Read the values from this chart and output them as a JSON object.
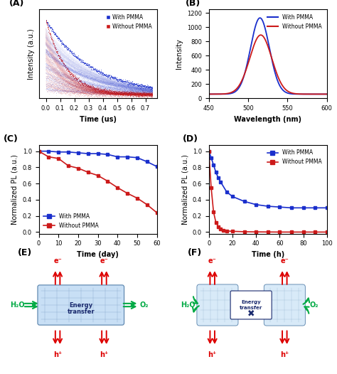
{
  "panel_A": {
    "label": "(A)",
    "xlabel": "Time (us)",
    "ylabel": "Intensity (a.u.)",
    "xlim": [
      -0.05,
      0.78
    ],
    "xticks": [
      0.0,
      0.1,
      0.2,
      0.3,
      0.4,
      0.5,
      0.6,
      0.7
    ],
    "legend": [
      "With PMMA",
      "Without PMMA"
    ],
    "blue_color": "#1a2fcc",
    "red_color": "#cc1a1a",
    "tau_blue": 0.32,
    "tau_red": 0.14
  },
  "panel_B": {
    "label": "(B)",
    "xlabel": "Wavelength (nm)",
    "ylabel": "Intensity",
    "xlim": [
      450,
      600
    ],
    "ylim": [
      0,
      1250
    ],
    "yticks": [
      0,
      200,
      400,
      600,
      800,
      1000,
      1200
    ],
    "xticks": [
      450,
      500,
      550,
      600
    ],
    "legend": [
      "With PMMA",
      "Without PMMA"
    ],
    "blue_color": "#1a2fcc",
    "red_color": "#cc1a1a",
    "mu_blue": 515,
    "sigma_blue": 12,
    "amp_blue": 1070,
    "base_blue": 60,
    "mu_red": 516,
    "sigma_red": 14,
    "amp_red": 830,
    "base_red": 60
  },
  "panel_C": {
    "label": "(C)",
    "xlabel": "Time (day)",
    "ylabel": "Normalized PL (a.u.)",
    "xlim": [
      0,
      60
    ],
    "ylim": [
      -0.02,
      1.08
    ],
    "yticks": [
      0.0,
      0.2,
      0.4,
      0.6,
      0.8,
      1.0
    ],
    "xticks": [
      0,
      10,
      20,
      30,
      40,
      50,
      60
    ],
    "legend": [
      "With PMMA",
      "Without PMMA"
    ],
    "blue_color": "#1a2fcc",
    "red_color": "#cc1a1a",
    "blue_x": [
      0,
      5,
      10,
      15,
      20,
      25,
      30,
      35,
      40,
      45,
      50,
      55,
      60
    ],
    "blue_y": [
      1.0,
      1.0,
      0.99,
      0.99,
      0.98,
      0.97,
      0.97,
      0.96,
      0.93,
      0.93,
      0.92,
      0.87,
      0.81
    ],
    "red_x": [
      0,
      5,
      10,
      15,
      20,
      25,
      30,
      35,
      40,
      45,
      50,
      55,
      60
    ],
    "red_y": [
      1.0,
      0.93,
      0.91,
      0.82,
      0.79,
      0.74,
      0.7,
      0.63,
      0.55,
      0.48,
      0.42,
      0.34,
      0.24
    ]
  },
  "panel_D": {
    "label": "(D)",
    "xlabel": "Time (h)",
    "ylabel": "Normalized PL (a.u.)",
    "xlim": [
      0,
      100
    ],
    "ylim": [
      -0.02,
      1.08
    ],
    "yticks": [
      0.0,
      0.2,
      0.4,
      0.6,
      0.8,
      1.0
    ],
    "xticks": [
      0,
      20,
      40,
      60,
      80,
      100
    ],
    "legend": [
      "With PMMA",
      "Without PMMA"
    ],
    "blue_color": "#1a2fcc",
    "red_color": "#cc1a1a",
    "blue_x": [
      0,
      2,
      4,
      6,
      8,
      10,
      15,
      20,
      30,
      40,
      50,
      60,
      70,
      80,
      90,
      100
    ],
    "blue_y": [
      1.0,
      0.92,
      0.83,
      0.74,
      0.67,
      0.62,
      0.5,
      0.44,
      0.38,
      0.34,
      0.32,
      0.31,
      0.3,
      0.3,
      0.3,
      0.3
    ],
    "red_x": [
      0,
      2,
      4,
      6,
      8,
      10,
      12,
      15,
      20,
      30,
      40,
      50,
      60,
      70,
      80,
      90,
      100
    ],
    "red_y": [
      1.0,
      0.55,
      0.25,
      0.12,
      0.07,
      0.04,
      0.02,
      0.015,
      0.01,
      0.005,
      0.003,
      0.002,
      0.001,
      0.001,
      0.001,
      0.001,
      0.001
    ]
  },
  "panel_E_label": "(E)",
  "panel_F_label": "(F)",
  "green_color": "#00aa44",
  "red_arrow_color": "#dd0000",
  "box_face": "#c8dff5",
  "box_edge": "#5580aa",
  "text_dark_blue": "#1a2a6e"
}
